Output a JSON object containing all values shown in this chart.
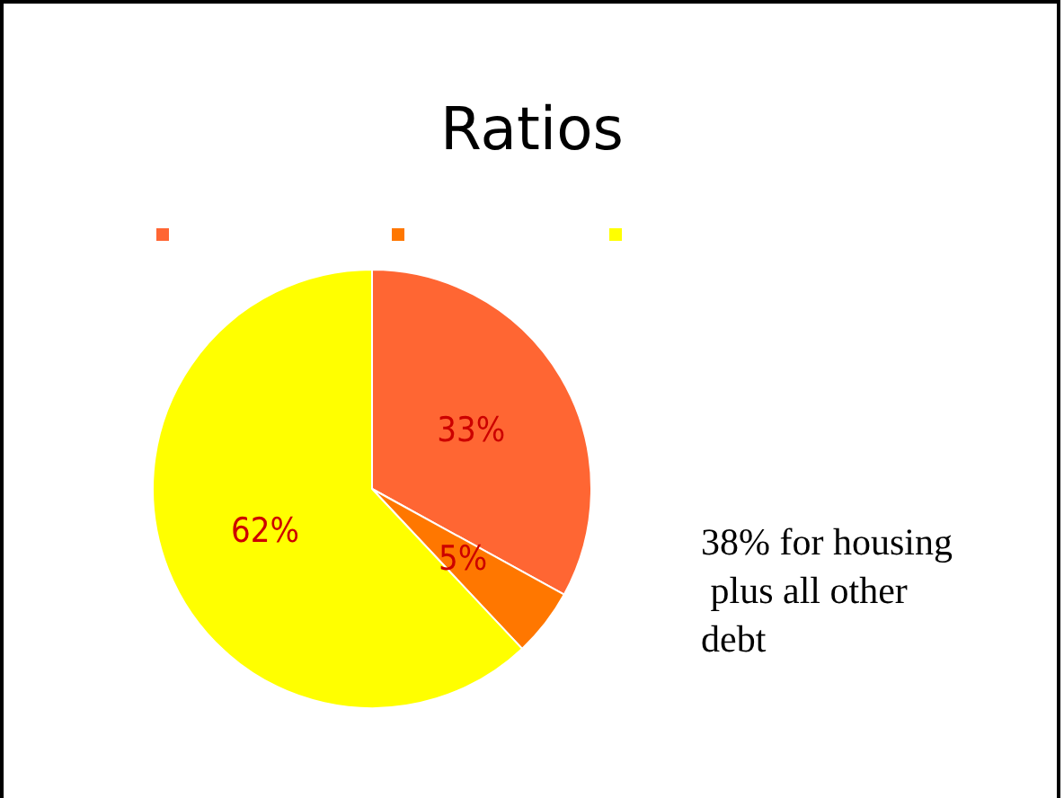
{
  "chart_data": {
    "type": "pie",
    "title": "Ratios",
    "categories": [
      null,
      null,
      null
    ],
    "values": [
      33,
      5,
      62
    ],
    "colors": [
      "#ff6633",
      "#ff7700",
      "#ffff00"
    ],
    "value_labels": [
      "33%",
      "5%",
      "62%"
    ],
    "annotations": [
      "38% for housing plus all other debt"
    ]
  }
}
